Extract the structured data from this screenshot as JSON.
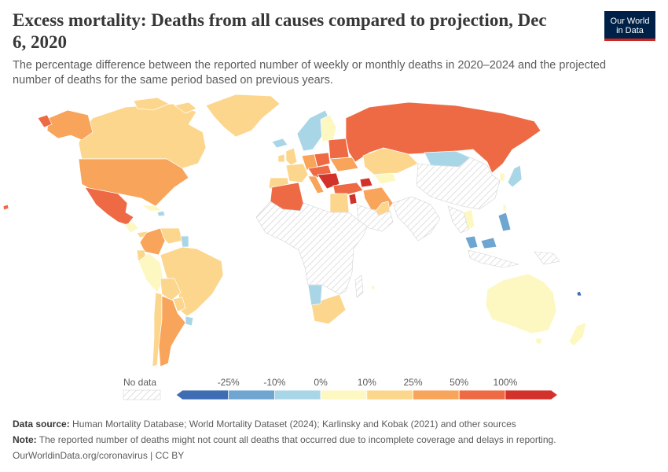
{
  "header": {
    "title": "Excess mortality: Deaths from all causes compared to projection, Dec 6, 2020",
    "subtitle": "The percentage difference between the reported number of weekly or monthly deaths in 2020–2024 and the projected number of deaths for the same period based on previous years."
  },
  "logo": {
    "line1": "Our World",
    "line2": "in Data"
  },
  "legend": {
    "no_data_label": "No data",
    "bins": [
      {
        "label": "-25%",
        "color": "#3f6db3"
      },
      {
        "label": "-10%",
        "color": "#6ea6d1"
      },
      {
        "label": "0%",
        "color": "#a9d6e7"
      },
      {
        "label": "10%",
        "color": "#fdf8c1"
      },
      {
        "label": "25%",
        "color": "#fcd68c"
      },
      {
        "label": "50%",
        "color": "#f8a45a"
      },
      {
        "label": "100%",
        "color": "#ee6a44"
      },
      {
        "label": "",
        "color": "#d3322b"
      }
    ]
  },
  "colors": {
    "no_data_stroke": "#d3d3d3",
    "border": "#ffffff",
    "lake": "#ffffff"
  },
  "footer": {
    "source_label": "Data source:",
    "source_text": "Human Mortality Database; World Mortality Dataset (2024); Karlinsky and Kobak (2021) and other sources",
    "note_label": "Note:",
    "note_text": "The reported number of deaths might not count all deaths that occurred due to incomplete coverage and delays in reporting.",
    "url": "OurWorldinData.org/coronavirus | CC BY"
  }
}
